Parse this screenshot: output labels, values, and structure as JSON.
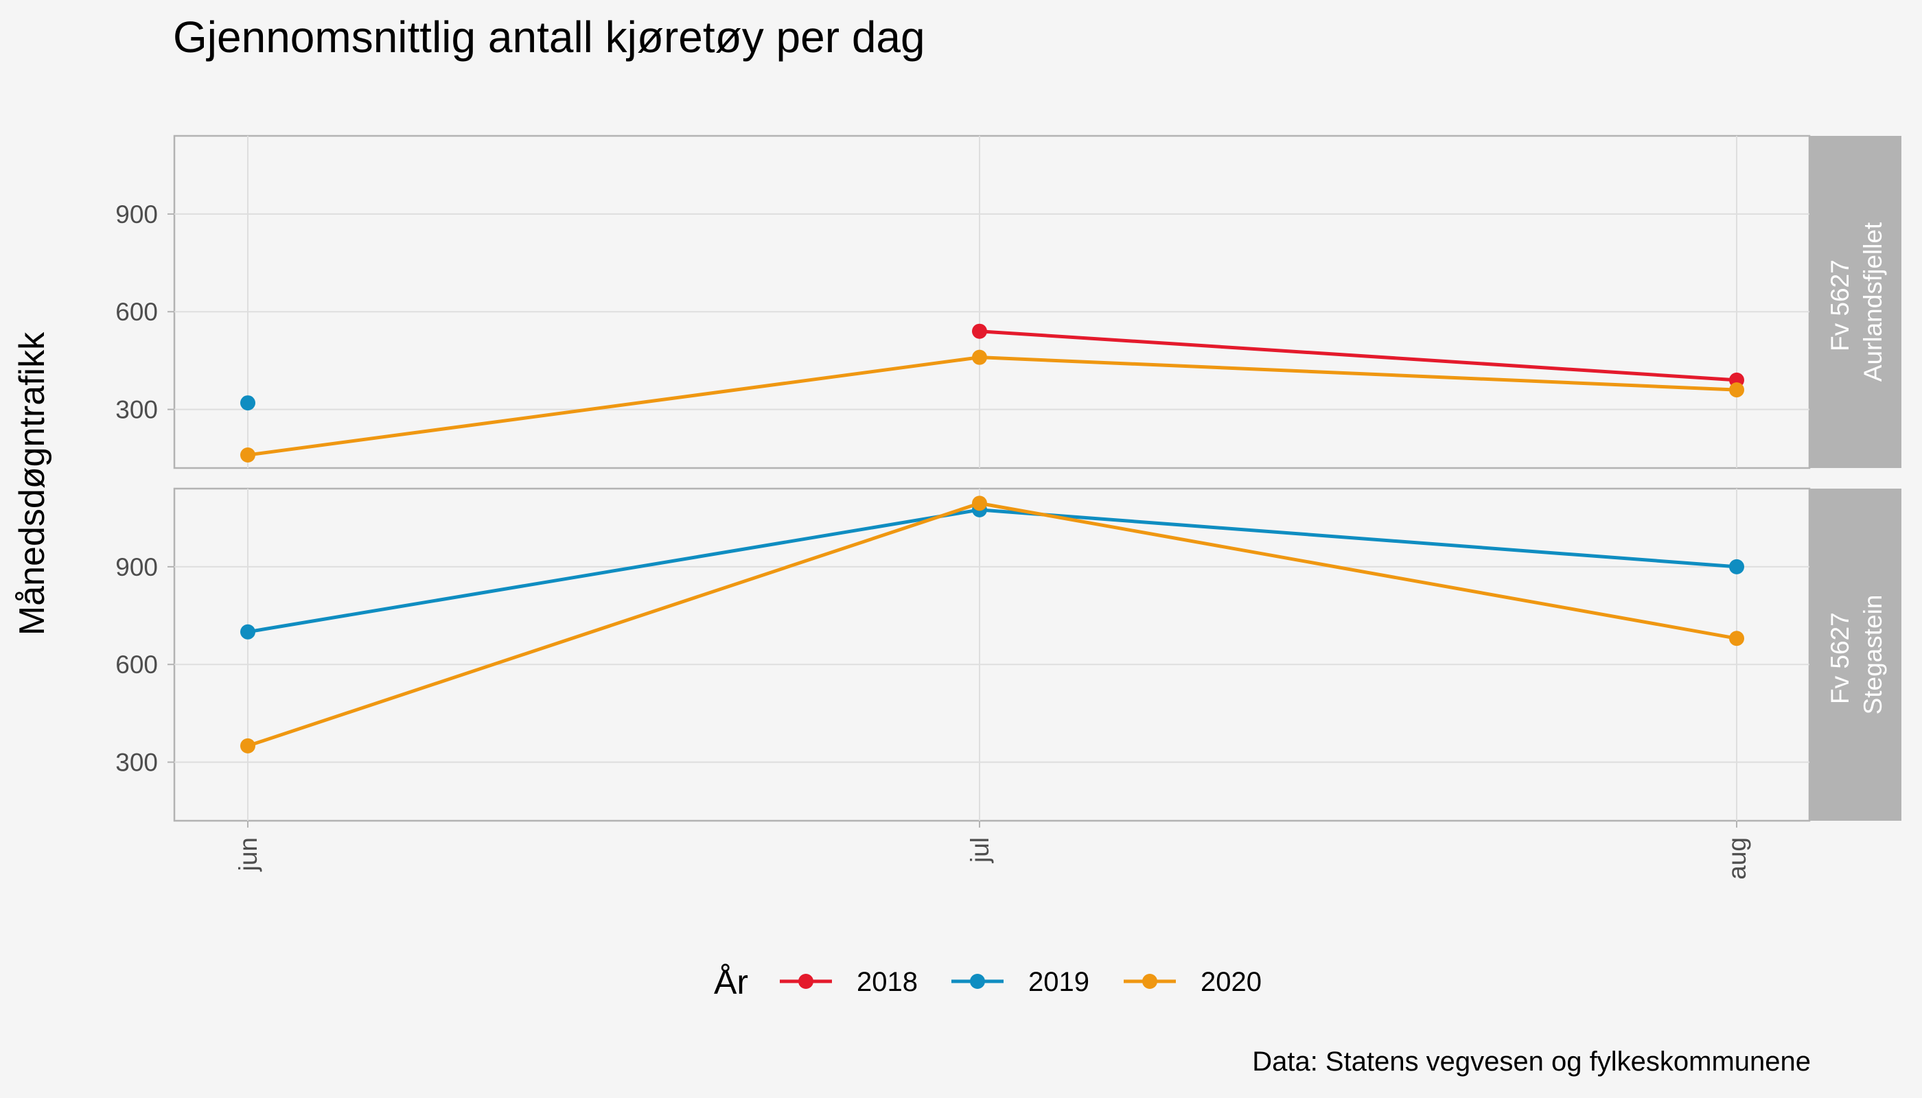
{
  "chart_data": {
    "type": "line",
    "title": "Gjennomsnittlig antall kjøretøy per dag",
    "ylabel": "Månedsdøgntrafikk",
    "caption": "Data: Statens vegvesen og fylkeskommunene",
    "legend_title": "År",
    "legend_position": "bottom",
    "grid": true,
    "categories": [
      "jun",
      "jul",
      "aug"
    ],
    "yticks": [
      300,
      600,
      900
    ],
    "ylim": [
      120,
      1140
    ],
    "series": [
      {
        "name": "2018",
        "color": "#e41a2c"
      },
      {
        "name": "2019",
        "color": "#0f8dc1"
      },
      {
        "name": "2020",
        "color": "#ef9711"
      }
    ],
    "panels": [
      {
        "label_line1": "Fv 5627",
        "label_line2": "Aurlandsfjellet",
        "data": [
          {
            "series": "2018",
            "values": [
              null,
              540,
              390
            ]
          },
          {
            "series": "2019",
            "values": [
              320,
              null,
              null
            ]
          },
          {
            "series": "2020",
            "values": [
              160,
              460,
              360
            ]
          }
        ]
      },
      {
        "label_line1": "Fv 5627",
        "label_line2": "Stegastein",
        "data": [
          {
            "series": "2019",
            "values": [
              700,
              1075,
              900
            ]
          },
          {
            "series": "2020",
            "values": [
              350,
              1095,
              680
            ]
          }
        ]
      }
    ]
  }
}
